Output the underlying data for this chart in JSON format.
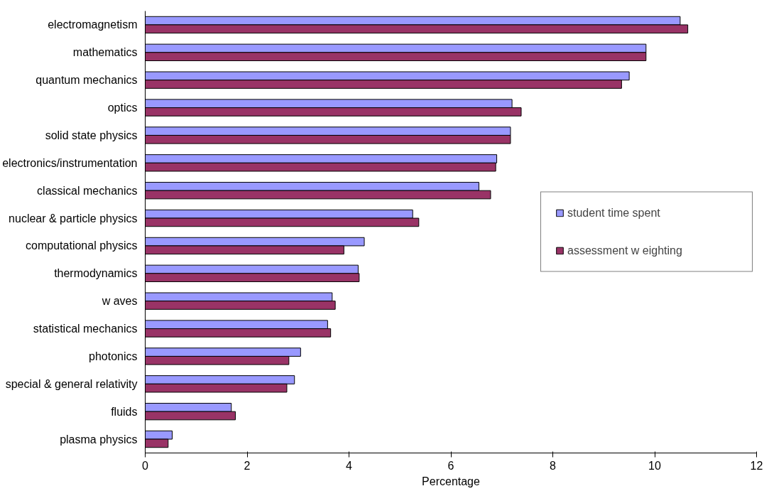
{
  "chart_data": {
    "type": "bar",
    "orientation": "horizontal",
    "xlabel": "Percentage",
    "categories": [
      "electromagnetism",
      "mathematics",
      "quantum mechanics",
      "optics",
      "solid state physics",
      "electronics/instrumentation",
      "classical mechanics",
      "nuclear & particle physics",
      "computational physics",
      "thermodynamics",
      "w aves",
      "statistical mechanics",
      "photonics",
      "special & general relativity",
      "fluids",
      "plasma physics"
    ],
    "series": [
      {
        "name": "student time spent",
        "color": "#9999ff",
        "values": [
          10.5,
          9.83,
          9.5,
          7.2,
          7.17,
          6.9,
          6.55,
          5.25,
          4.3,
          4.18,
          3.67,
          3.58,
          3.05,
          2.93,
          1.69,
          0.53
        ]
      },
      {
        "name": "assessment w eighting",
        "color": "#993366",
        "values": [
          10.65,
          9.83,
          9.35,
          7.38,
          7.17,
          6.88,
          6.78,
          5.37,
          3.9,
          4.2,
          3.73,
          3.64,
          2.82,
          2.78,
          1.77,
          0.45
        ]
      }
    ],
    "xlim": [
      0,
      12
    ],
    "xticks": [
      0,
      2,
      4,
      6,
      8,
      10,
      12
    ],
    "grid": false,
    "legend": "right"
  }
}
